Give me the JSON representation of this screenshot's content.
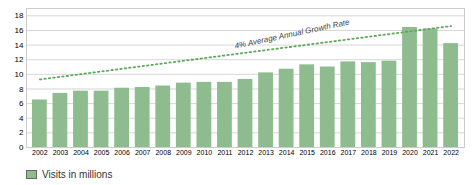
{
  "chart_data": {
    "type": "bar",
    "x": [
      2002,
      2003,
      2004,
      2005,
      2006,
      2007,
      2008,
      2009,
      2010,
      2011,
      2012,
      2013,
      2014,
      2015,
      2016,
      2017,
      2018,
      2019,
      2020,
      2021,
      2022
    ],
    "series": [
      {
        "name": "Visits in millions",
        "type": "bar",
        "color": "#8fbc8f",
        "values": [
          6.5,
          7.4,
          7.7,
          7.7,
          8.1,
          8.2,
          8.4,
          8.8,
          8.9,
          8.9,
          9.3,
          10.2,
          10.7,
          11.3,
          11.0,
          11.7,
          11.6,
          11.8,
          16.4,
          16.2,
          14.2
        ]
      }
    ],
    "reference_line": {
      "x": [
        2002,
        2022
      ],
      "values": [
        9.3,
        16.6
      ],
      "color": "#5aaa5a",
      "line_style": "dotted"
    },
    "annotations": [
      {
        "text": "4% Average Annual Growth Rate",
        "x": 2011.5,
        "y": 13.5
      }
    ],
    "xlim": [
      2001.35,
      2022.65
    ],
    "xticks": [
      2002,
      2003,
      2004,
      2005,
      2006,
      2007,
      2008,
      2009,
      2010,
      2011,
      2012,
      2013,
      2014,
      2015,
      2016,
      2017,
      2018,
      2019,
      2020,
      2021,
      2022
    ],
    "ylim": [
      0,
      19
    ],
    "yticks": [
      0,
      2,
      4,
      6,
      8,
      10,
      12,
      14,
      16,
      18
    ],
    "grid": true,
    "legend": "bottom left"
  }
}
